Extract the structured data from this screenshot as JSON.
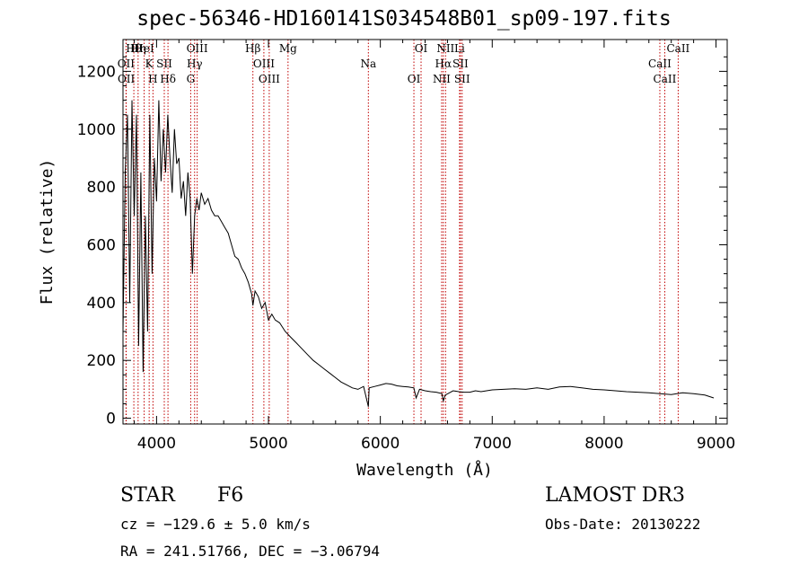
{
  "title": "spec-56346-HD160141S034548B01_sp09-197.fits",
  "chart_data": {
    "type": "line",
    "xlabel": "Wavelength (Å)",
    "ylabel": "Flux (relative)",
    "xlim": [
      3700,
      9100
    ],
    "ylim": [
      -20,
      1310
    ],
    "xticks": [
      4000,
      5000,
      6000,
      7000,
      8000,
      9000
    ],
    "xtick_labels": [
      "4000",
      "5000",
      "6000",
      "7000",
      "8000",
      "9000"
    ],
    "yticks": [
      0,
      200,
      400,
      600,
      800,
      1000,
      1200
    ],
    "ytick_labels": [
      "0",
      "200",
      "400",
      "600",
      "800",
      "1000",
      "1200"
    ],
    "series": [
      {
        "name": "flux",
        "x": [
          3700,
          3720,
          3740,
          3760,
          3780,
          3800,
          3820,
          3840,
          3860,
          3880,
          3900,
          3920,
          3940,
          3960,
          3980,
          4000,
          4020,
          4040,
          4060,
          4080,
          4100,
          4120,
          4140,
          4160,
          4180,
          4200,
          4220,
          4240,
          4260,
          4280,
          4300,
          4320,
          4340,
          4360,
          4380,
          4400,
          4430,
          4460,
          4490,
          4520,
          4550,
          4580,
          4610,
          4640,
          4670,
          4700,
          4730,
          4760,
          4790,
          4820,
          4850,
          4861,
          4880,
          4910,
          4940,
          4970,
          5000,
          5030,
          5060,
          5100,
          5150,
          5200,
          5250,
          5300,
          5350,
          5400,
          5450,
          5500,
          5550,
          5600,
          5650,
          5700,
          5750,
          5800,
          5850,
          5893,
          5900,
          5950,
          6000,
          6050,
          6100,
          6150,
          6200,
          6250,
          6300,
          6320,
          6350,
          6400,
          6450,
          6500,
          6550,
          6563,
          6580,
          6650,
          6700,
          6750,
          6800,
          6850,
          6900,
          6950,
          7000,
          7100,
          7200,
          7300,
          7400,
          7500,
          7600,
          7700,
          7800,
          7900,
          8000,
          8100,
          8200,
          8300,
          8400,
          8500,
          8600,
          8700,
          8800,
          8900,
          8980
        ],
        "y": [
          300,
          850,
          1050,
          400,
          1100,
          700,
          1050,
          250,
          850,
          160,
          700,
          300,
          1050,
          500,
          900,
          750,
          1100,
          820,
          1000,
          850,
          1050,
          900,
          780,
          1000,
          880,
          900,
          760,
          820,
          700,
          850,
          760,
          500,
          700,
          760,
          720,
          780,
          740,
          760,
          720,
          700,
          700,
          680,
          660,
          640,
          600,
          560,
          550,
          520,
          500,
          470,
          430,
          390,
          440,
          420,
          380,
          400,
          340,
          360,
          340,
          330,
          300,
          280,
          260,
          240,
          220,
          200,
          185,
          170,
          155,
          140,
          125,
          115,
          105,
          100,
          110,
          40,
          105,
          110,
          115,
          120,
          118,
          112,
          110,
          108,
          105,
          70,
          100,
          95,
          92,
          90,
          85,
          60,
          80,
          95,
          92,
          90,
          90,
          95,
          92,
          95,
          98,
          100,
          102,
          100,
          105,
          100,
          108,
          110,
          105,
          100,
          98,
          95,
          92,
          90,
          88,
          85,
          82,
          88,
          85,
          80,
          70
        ]
      }
    ],
    "lines": [
      {
        "label": "Hθ",
        "x": 3797
      },
      {
        "label": "OII",
        "x": 3727
      },
      {
        "label": "OII",
        "x": 3729
      },
      {
        "label": "Hη",
        "x": 3835
      },
      {
        "label": "K",
        "x": 3934
      },
      {
        "label": "H",
        "x": 3968
      },
      {
        "label": "HeI",
        "x": 3889
      },
      {
        "label": "SII",
        "x": 4069
      },
      {
        "label": "Hδ",
        "x": 4102
      },
      {
        "label": "OIII",
        "x": 4363
      },
      {
        "label": "Hγ",
        "x": 4340
      },
      {
        "label": "G",
        "x": 4305
      },
      {
        "label": "Hβ",
        "x": 4861
      },
      {
        "label": "OIII",
        "x": 4959
      },
      {
        "label": "OIII",
        "x": 5007
      },
      {
        "label": "Mg",
        "x": 5175
      },
      {
        "label": "Na",
        "x": 5893
      },
      {
        "label": "OI",
        "x": 6300
      },
      {
        "label": "OI",
        "x": 6364
      },
      {
        "label": "Hα",
        "x": 6563
      },
      {
        "label": "NII",
        "x": 6548
      },
      {
        "label": "NII",
        "x": 6583
      },
      {
        "label": "SII",
        "x": 6716
      },
      {
        "label": "SII",
        "x": 6731
      },
      {
        "label": "Li",
        "x": 6708
      },
      {
        "label": "CaII",
        "x": 8498
      },
      {
        "label": "CaII",
        "x": 8542
      },
      {
        "label": "CaII",
        "x": 8662
      }
    ]
  },
  "info": {
    "class_label": "STAR",
    "subclass": "F6",
    "survey": "LAMOST DR3",
    "cz": "cz = −129.6 ± 5.0 km/s",
    "obs_date": "Obs-Date: 20130222",
    "coords": "RA = 241.51766, DEC =  −3.06794"
  }
}
